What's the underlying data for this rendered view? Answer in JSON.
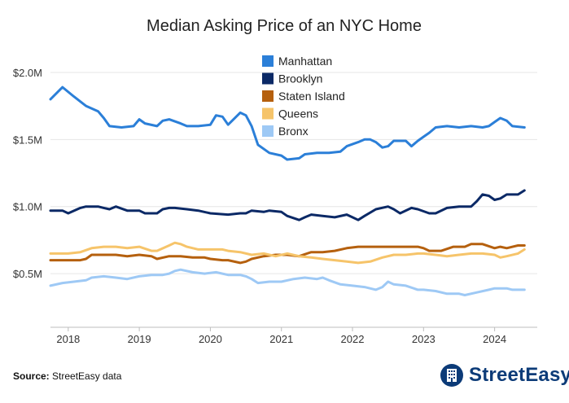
{
  "chart_data": {
    "type": "line",
    "title": "Median Asking Price of an NYC Home",
    "xlabel": "",
    "ylabel": "",
    "xlim": [
      2017.75,
      2024.6
    ],
    "ylim": [
      0.1,
      2.2
    ],
    "yticks": [
      {
        "value": 0.5,
        "label": "$0.5M"
      },
      {
        "value": 1.0,
        "label": "$1.0M"
      },
      {
        "value": 1.5,
        "label": "$1.5M"
      },
      {
        "value": 2.0,
        "label": "$2.0M"
      }
    ],
    "xticks": [
      {
        "value": 2018,
        "label": "2018"
      },
      {
        "value": 2019,
        "label": "2019"
      },
      {
        "value": 2020,
        "label": "2020"
      },
      {
        "value": 2021,
        "label": "2021"
      },
      {
        "value": 2022,
        "label": "2022"
      },
      {
        "value": 2023,
        "label": "2023"
      },
      {
        "value": 2024,
        "label": "2024"
      }
    ],
    "grid": "horizontal",
    "legend_position": "top-center",
    "series": [
      {
        "name": "Manhattan",
        "color": "#2b7fd8",
        "points": [
          [
            2017.75,
            1.8
          ],
          [
            2017.92,
            1.89
          ],
          [
            2018.08,
            1.82
          ],
          [
            2018.25,
            1.75
          ],
          [
            2018.42,
            1.71
          ],
          [
            2018.5,
            1.66
          ],
          [
            2018.58,
            1.6
          ],
          [
            2018.75,
            1.59
          ],
          [
            2018.92,
            1.6
          ],
          [
            2019.0,
            1.65
          ],
          [
            2019.08,
            1.62
          ],
          [
            2019.25,
            1.6
          ],
          [
            2019.33,
            1.64
          ],
          [
            2019.42,
            1.65
          ],
          [
            2019.58,
            1.62
          ],
          [
            2019.67,
            1.6
          ],
          [
            2019.83,
            1.6
          ],
          [
            2020.0,
            1.61
          ],
          [
            2020.08,
            1.68
          ],
          [
            2020.17,
            1.67
          ],
          [
            2020.25,
            1.61
          ],
          [
            2020.42,
            1.7
          ],
          [
            2020.5,
            1.68
          ],
          [
            2020.58,
            1.6
          ],
          [
            2020.67,
            1.46
          ],
          [
            2020.83,
            1.4
          ],
          [
            2021.0,
            1.38
          ],
          [
            2021.08,
            1.35
          ],
          [
            2021.25,
            1.36
          ],
          [
            2021.33,
            1.39
          ],
          [
            2021.5,
            1.4
          ],
          [
            2021.67,
            1.4
          ],
          [
            2021.83,
            1.41
          ],
          [
            2021.92,
            1.45
          ],
          [
            2022.08,
            1.48
          ],
          [
            2022.17,
            1.5
          ],
          [
            2022.25,
            1.5
          ],
          [
            2022.33,
            1.48
          ],
          [
            2022.42,
            1.44
          ],
          [
            2022.5,
            1.45
          ],
          [
            2022.58,
            1.49
          ],
          [
            2022.75,
            1.49
          ],
          [
            2022.83,
            1.45
          ],
          [
            2022.92,
            1.49
          ],
          [
            2023.0,
            1.52
          ],
          [
            2023.08,
            1.55
          ],
          [
            2023.17,
            1.59
          ],
          [
            2023.33,
            1.6
          ],
          [
            2023.5,
            1.59
          ],
          [
            2023.67,
            1.6
          ],
          [
            2023.83,
            1.59
          ],
          [
            2023.92,
            1.6
          ],
          [
            2024.0,
            1.63
          ],
          [
            2024.08,
            1.66
          ],
          [
            2024.17,
            1.64
          ],
          [
            2024.25,
            1.6
          ],
          [
            2024.42,
            1.59
          ]
        ]
      },
      {
        "name": "Brooklyn",
        "color": "#0b2966",
        "points": [
          [
            2017.75,
            0.97
          ],
          [
            2017.92,
            0.97
          ],
          [
            2018.0,
            0.95
          ],
          [
            2018.17,
            0.99
          ],
          [
            2018.25,
            1.0
          ],
          [
            2018.42,
            1.0
          ],
          [
            2018.5,
            0.99
          ],
          [
            2018.58,
            0.98
          ],
          [
            2018.67,
            1.0
          ],
          [
            2018.83,
            0.97
          ],
          [
            2019.0,
            0.97
          ],
          [
            2019.08,
            0.95
          ],
          [
            2019.25,
            0.95
          ],
          [
            2019.33,
            0.98
          ],
          [
            2019.42,
            0.99
          ],
          [
            2019.5,
            0.99
          ],
          [
            2019.67,
            0.98
          ],
          [
            2019.83,
            0.97
          ],
          [
            2020.0,
            0.95
          ],
          [
            2020.25,
            0.94
          ],
          [
            2020.42,
            0.95
          ],
          [
            2020.5,
            0.95
          ],
          [
            2020.58,
            0.97
          ],
          [
            2020.75,
            0.96
          ],
          [
            2020.83,
            0.97
          ],
          [
            2021.0,
            0.96
          ],
          [
            2021.08,
            0.93
          ],
          [
            2021.25,
            0.9
          ],
          [
            2021.33,
            0.92
          ],
          [
            2021.42,
            0.94
          ],
          [
            2021.58,
            0.93
          ],
          [
            2021.75,
            0.92
          ],
          [
            2021.92,
            0.94
          ],
          [
            2022.0,
            0.92
          ],
          [
            2022.08,
            0.9
          ],
          [
            2022.17,
            0.93
          ],
          [
            2022.33,
            0.98
          ],
          [
            2022.5,
            1.0
          ],
          [
            2022.58,
            0.98
          ],
          [
            2022.67,
            0.95
          ],
          [
            2022.83,
            0.99
          ],
          [
            2022.92,
            0.98
          ],
          [
            2023.08,
            0.95
          ],
          [
            2023.17,
            0.95
          ],
          [
            2023.33,
            0.99
          ],
          [
            2023.5,
            1.0
          ],
          [
            2023.67,
            1.0
          ],
          [
            2023.75,
            1.04
          ],
          [
            2023.83,
            1.09
          ],
          [
            2023.92,
            1.08
          ],
          [
            2024.0,
            1.05
          ],
          [
            2024.08,
            1.06
          ],
          [
            2024.17,
            1.09
          ],
          [
            2024.33,
            1.09
          ],
          [
            2024.42,
            1.12
          ]
        ]
      },
      {
        "name": "Staten Island",
        "color": "#b5600e",
        "points": [
          [
            2017.75,
            0.6
          ],
          [
            2018.0,
            0.6
          ],
          [
            2018.17,
            0.6
          ],
          [
            2018.25,
            0.61
          ],
          [
            2018.33,
            0.64
          ],
          [
            2018.5,
            0.64
          ],
          [
            2018.67,
            0.64
          ],
          [
            2018.83,
            0.63
          ],
          [
            2019.0,
            0.64
          ],
          [
            2019.17,
            0.63
          ],
          [
            2019.25,
            0.61
          ],
          [
            2019.42,
            0.63
          ],
          [
            2019.58,
            0.63
          ],
          [
            2019.75,
            0.62
          ],
          [
            2019.92,
            0.62
          ],
          [
            2020.0,
            0.61
          ],
          [
            2020.17,
            0.6
          ],
          [
            2020.25,
            0.6
          ],
          [
            2020.42,
            0.58
          ],
          [
            2020.5,
            0.59
          ],
          [
            2020.58,
            0.61
          ],
          [
            2020.75,
            0.63
          ],
          [
            2020.92,
            0.64
          ],
          [
            2021.08,
            0.64
          ],
          [
            2021.25,
            0.63
          ],
          [
            2021.42,
            0.66
          ],
          [
            2021.58,
            0.66
          ],
          [
            2021.75,
            0.67
          ],
          [
            2021.92,
            0.69
          ],
          [
            2022.08,
            0.7
          ],
          [
            2022.25,
            0.7
          ],
          [
            2022.42,
            0.7
          ],
          [
            2022.58,
            0.7
          ],
          [
            2022.75,
            0.7
          ],
          [
            2022.92,
            0.7
          ],
          [
            2023.0,
            0.69
          ],
          [
            2023.08,
            0.67
          ],
          [
            2023.25,
            0.67
          ],
          [
            2023.42,
            0.7
          ],
          [
            2023.58,
            0.7
          ],
          [
            2023.67,
            0.72
          ],
          [
            2023.83,
            0.72
          ],
          [
            2024.0,
            0.69
          ],
          [
            2024.08,
            0.7
          ],
          [
            2024.17,
            0.69
          ],
          [
            2024.33,
            0.71
          ],
          [
            2024.42,
            0.71
          ]
        ]
      },
      {
        "name": "Queens",
        "color": "#f6c46a",
        "points": [
          [
            2017.75,
            0.65
          ],
          [
            2018.0,
            0.65
          ],
          [
            2018.17,
            0.66
          ],
          [
            2018.33,
            0.69
          ],
          [
            2018.5,
            0.7
          ],
          [
            2018.67,
            0.7
          ],
          [
            2018.83,
            0.69
          ],
          [
            2019.0,
            0.7
          ],
          [
            2019.17,
            0.67
          ],
          [
            2019.25,
            0.67
          ],
          [
            2019.42,
            0.71
          ],
          [
            2019.5,
            0.73
          ],
          [
            2019.58,
            0.72
          ],
          [
            2019.67,
            0.7
          ],
          [
            2019.83,
            0.68
          ],
          [
            2020.0,
            0.68
          ],
          [
            2020.17,
            0.68
          ],
          [
            2020.25,
            0.67
          ],
          [
            2020.42,
            0.66
          ],
          [
            2020.58,
            0.64
          ],
          [
            2020.75,
            0.65
          ],
          [
            2020.92,
            0.63
          ],
          [
            2021.08,
            0.65
          ],
          [
            2021.25,
            0.63
          ],
          [
            2021.42,
            0.62
          ],
          [
            2021.58,
            0.61
          ],
          [
            2021.75,
            0.6
          ],
          [
            2021.92,
            0.59
          ],
          [
            2022.08,
            0.58
          ],
          [
            2022.25,
            0.59
          ],
          [
            2022.42,
            0.62
          ],
          [
            2022.58,
            0.64
          ],
          [
            2022.75,
            0.64
          ],
          [
            2022.92,
            0.65
          ],
          [
            2023.0,
            0.65
          ],
          [
            2023.17,
            0.64
          ],
          [
            2023.33,
            0.63
          ],
          [
            2023.5,
            0.64
          ],
          [
            2023.67,
            0.65
          ],
          [
            2023.83,
            0.65
          ],
          [
            2024.0,
            0.64
          ],
          [
            2024.08,
            0.62
          ],
          [
            2024.17,
            0.63
          ],
          [
            2024.33,
            0.65
          ],
          [
            2024.42,
            0.68
          ]
        ]
      },
      {
        "name": "Bronx",
        "color": "#9ec9f5",
        "points": [
          [
            2017.75,
            0.41
          ],
          [
            2017.92,
            0.43
          ],
          [
            2018.08,
            0.44
          ],
          [
            2018.25,
            0.45
          ],
          [
            2018.33,
            0.47
          ],
          [
            2018.5,
            0.48
          ],
          [
            2018.67,
            0.47
          ],
          [
            2018.83,
            0.46
          ],
          [
            2019.0,
            0.48
          ],
          [
            2019.17,
            0.49
          ],
          [
            2019.33,
            0.49
          ],
          [
            2019.42,
            0.5
          ],
          [
            2019.5,
            0.52
          ],
          [
            2019.58,
            0.53
          ],
          [
            2019.75,
            0.51
          ],
          [
            2019.92,
            0.5
          ],
          [
            2020.08,
            0.51
          ],
          [
            2020.25,
            0.49
          ],
          [
            2020.42,
            0.49
          ],
          [
            2020.5,
            0.48
          ],
          [
            2020.58,
            0.46
          ],
          [
            2020.67,
            0.43
          ],
          [
            2020.83,
            0.44
          ],
          [
            2021.0,
            0.44
          ],
          [
            2021.17,
            0.46
          ],
          [
            2021.33,
            0.47
          ],
          [
            2021.5,
            0.46
          ],
          [
            2021.58,
            0.47
          ],
          [
            2021.67,
            0.45
          ],
          [
            2021.83,
            0.42
          ],
          [
            2022.0,
            0.41
          ],
          [
            2022.17,
            0.4
          ],
          [
            2022.33,
            0.38
          ],
          [
            2022.42,
            0.4
          ],
          [
            2022.5,
            0.44
          ],
          [
            2022.58,
            0.42
          ],
          [
            2022.75,
            0.41
          ],
          [
            2022.92,
            0.38
          ],
          [
            2023.0,
            0.38
          ],
          [
            2023.17,
            0.37
          ],
          [
            2023.33,
            0.35
          ],
          [
            2023.5,
            0.35
          ],
          [
            2023.58,
            0.34
          ],
          [
            2023.75,
            0.36
          ],
          [
            2023.92,
            0.38
          ],
          [
            2024.0,
            0.39
          ],
          [
            2024.17,
            0.39
          ],
          [
            2024.25,
            0.38
          ],
          [
            2024.42,
            0.38
          ]
        ]
      }
    ]
  },
  "footer": {
    "source_label": "Source:",
    "source_text": " StreetEasy data",
    "brand": "StreetEasy"
  },
  "colors": {
    "brand_blue": "#0c3b78"
  }
}
